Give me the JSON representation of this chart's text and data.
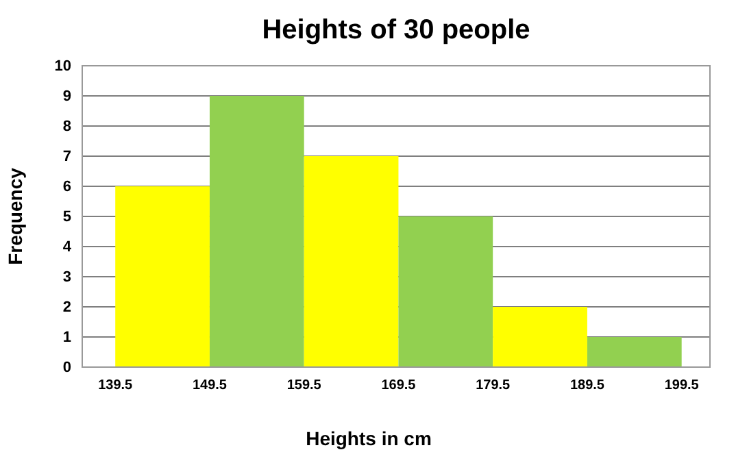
{
  "chart_data": {
    "type": "histogram",
    "title": "Heights of 30 people",
    "xlabel": "Heights in cm",
    "ylabel": "Frequency",
    "bins": [
      139.5,
      149.5,
      159.5,
      169.5,
      179.5,
      189.5,
      199.5
    ],
    "values": [
      6,
      9,
      7,
      5,
      2,
      1
    ],
    "colors": [
      "#ffff00",
      "#92d050",
      "#ffff00",
      "#92d050",
      "#ffff00",
      "#92d050"
    ],
    "xlim": [
      136,
      202.5
    ],
    "xticks": [
      139.5,
      149.5,
      159.5,
      169.5,
      179.5,
      189.5,
      199.5
    ],
    "ylim": [
      0,
      10
    ],
    "yticks": [
      0,
      1,
      2,
      3,
      4,
      5,
      6,
      7,
      8,
      9,
      10
    ],
    "grid": "y"
  }
}
